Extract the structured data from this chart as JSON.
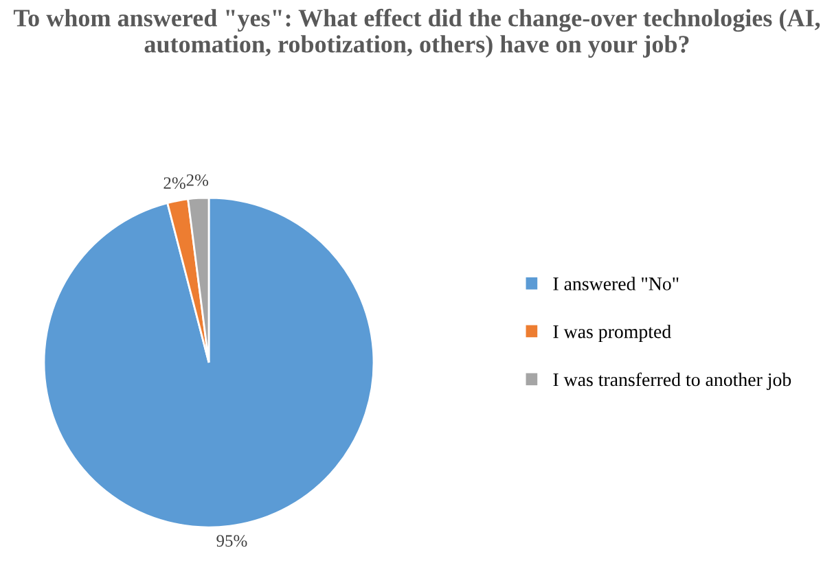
{
  "chart_data": {
    "type": "pie",
    "title": "To whom answered \"yes\": What effect did the change-over technologies (AI, automation, robotization, others) have on your job?",
    "categories": [
      "I answered \"No\"",
      "I was prompted",
      "I was transferred to another job"
    ],
    "values": [
      95,
      2,
      2
    ],
    "colors": [
      "#5b9bd5",
      "#ed7d31",
      "#a5a5a5"
    ],
    "value_labels": [
      "95%",
      "2%",
      "2%"
    ],
    "legend": "right"
  }
}
